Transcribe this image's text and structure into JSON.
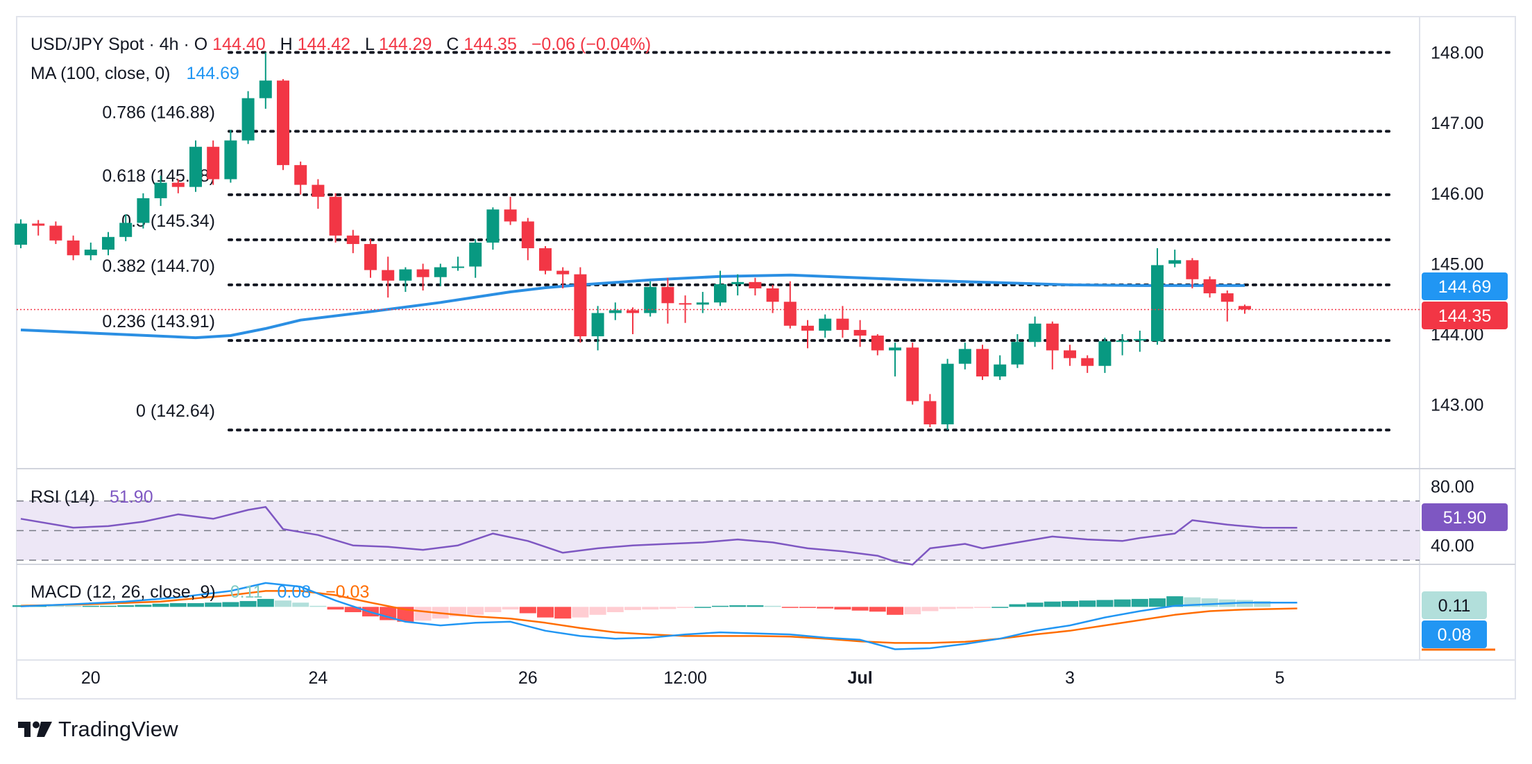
{
  "colors": {
    "up": "#089981",
    "down": "#f23645",
    "ma": "#2962ff",
    "ma_line": "#2b8fe3",
    "rsi": "#7e57c2",
    "rsi_band": "#ede7f6",
    "macd_line": "#2196f3",
    "signal_line": "#ff6d00",
    "hist_up_strong": "#26a69a",
    "hist_up_weak": "#b2dfdb",
    "hist_down_strong": "#ff5252",
    "hist_down_weak": "#ffcdd2",
    "grid_dots": "#131722",
    "text": "#131722"
  },
  "legend": {
    "symbol": "USD/JPY Spot · 4h · O",
    "open": "144.40",
    "high_label": "H",
    "high": "144.42",
    "low_label": "L",
    "low": "144.29",
    "close_label": "C",
    "close": "144.35",
    "change": "−0.06 (−0.04%)",
    "ma_label": "MA (100, close, 0)",
    "ma_value": "144.69",
    "rsi_label": "RSI (14)",
    "rsi_value": "51.90",
    "macd_label": "MACD (12, 26, close, 9)",
    "macd_hist": "0.11",
    "macd_value": "0.08",
    "macd_signal": "−0.03"
  },
  "badges": {
    "ma": "144.69",
    "price": "144.35",
    "rsi": "51.90",
    "macd_hist": "0.11",
    "macd": "0.08"
  },
  "brand": {
    "name": "TradingView"
  },
  "chart_data": {
    "type": "candlestick",
    "ylim": [
      142.15,
      148.35
    ],
    "y_ticks": [
      "148.00",
      "147.00",
      "146.00",
      "145.00",
      "144.00",
      "143.00"
    ],
    "x_ticks": [
      {
        "label": "20",
        "bar": 4
      },
      {
        "label": "24",
        "bar": 17
      },
      {
        "label": "26",
        "bar": 29
      },
      {
        "label": "12:00",
        "bar": 38
      },
      {
        "label": "Jul",
        "bar": 48
      },
      {
        "label": "3",
        "bar": 60
      },
      {
        "label": "5",
        "bar": 72
      }
    ],
    "fibonacci": [
      {
        "label": "0.786 (146.88)",
        "value": 146.88
      },
      {
        "label": "0.618 (145.98)",
        "value": 145.98
      },
      {
        "label": "0.5 (145.34)",
        "value": 145.34
      },
      {
        "label": "0.382 (144.70)",
        "value": 144.7
      },
      {
        "label": "0.236 (143.91)",
        "value": 143.91
      },
      {
        "label": "0 (142.64)",
        "value": 142.64
      }
    ],
    "fib_top": 148.0,
    "candles": [
      [
        145.27,
        145.57,
        145.63,
        145.22
      ],
      [
        145.57,
        145.54,
        145.62,
        145.4
      ],
      [
        145.54,
        145.33,
        145.6,
        145.28
      ],
      [
        145.33,
        145.12,
        145.4,
        145.05
      ],
      [
        145.12,
        145.2,
        145.3,
        145.05
      ],
      [
        145.2,
        145.38,
        145.45,
        145.12
      ],
      [
        145.38,
        145.58,
        145.7,
        145.32
      ],
      [
        145.58,
        145.93,
        146.0,
        145.5
      ],
      [
        145.93,
        146.15,
        146.25,
        145.82
      ],
      [
        146.15,
        146.09,
        146.2,
        146.0
      ],
      [
        146.09,
        146.66,
        146.75,
        146.02
      ],
      [
        146.66,
        146.2,
        146.75,
        146.12
      ],
      [
        146.2,
        146.75,
        146.9,
        146.15
      ],
      [
        146.75,
        147.35,
        147.45,
        146.7
      ],
      [
        147.35,
        147.6,
        148.0,
        147.2
      ],
      [
        147.6,
        146.4,
        147.62,
        146.33
      ],
      [
        146.4,
        146.12,
        146.45,
        145.98
      ],
      [
        146.12,
        145.95,
        146.2,
        145.78
      ],
      [
        145.95,
        145.4,
        146.0,
        145.3
      ],
      [
        145.4,
        145.28,
        145.48,
        145.15
      ],
      [
        145.28,
        144.91,
        145.35,
        144.8
      ],
      [
        144.91,
        144.76,
        145.1,
        144.52
      ],
      [
        144.76,
        144.92,
        144.95,
        144.6
      ],
      [
        144.92,
        144.81,
        145.0,
        144.62
      ],
      [
        144.81,
        144.95,
        145.0,
        144.68
      ],
      [
        144.95,
        144.96,
        145.1,
        144.9
      ],
      [
        144.96,
        145.3,
        145.35,
        144.8
      ],
      [
        145.3,
        145.77,
        145.8,
        145.2
      ],
      [
        145.77,
        145.6,
        145.95,
        145.55
      ],
      [
        145.6,
        145.22,
        145.65,
        145.05
      ],
      [
        145.22,
        144.9,
        145.25,
        144.85
      ],
      [
        144.9,
        144.85,
        144.95,
        144.65
      ],
      [
        144.85,
        143.97,
        144.95,
        143.88
      ],
      [
        143.97,
        144.3,
        144.4,
        143.77
      ],
      [
        144.3,
        144.34,
        144.45,
        144.2
      ],
      [
        144.34,
        144.3,
        144.38,
        144.0
      ],
      [
        144.3,
        144.67,
        144.75,
        144.25
      ],
      [
        144.67,
        144.44,
        144.8,
        144.15
      ],
      [
        144.44,
        144.42,
        144.55,
        144.16
      ],
      [
        144.42,
        144.45,
        144.6,
        144.3
      ],
      [
        144.45,
        144.71,
        144.9,
        144.4
      ],
      [
        144.71,
        144.74,
        144.85,
        144.55
      ],
      [
        144.74,
        144.65,
        144.8,
        144.55
      ],
      [
        144.65,
        144.46,
        144.7,
        144.3
      ],
      [
        144.46,
        144.12,
        144.75,
        144.08
      ],
      [
        144.12,
        144.05,
        144.2,
        143.8
      ],
      [
        144.05,
        144.22,
        144.28,
        143.95
      ],
      [
        144.22,
        144.06,
        144.4,
        143.95
      ],
      [
        144.06,
        143.98,
        144.2,
        143.82
      ],
      [
        143.98,
        143.77,
        144.0,
        143.7
      ],
      [
        143.77,
        143.81,
        143.88,
        143.4
      ],
      [
        143.81,
        143.05,
        143.88,
        143.0
      ],
      [
        143.05,
        142.72,
        143.15,
        142.68
      ],
      [
        142.72,
        143.58,
        143.65,
        142.64
      ],
      [
        143.58,
        143.79,
        143.88,
        143.5
      ],
      [
        143.79,
        143.4,
        143.85,
        143.35
      ],
      [
        143.4,
        143.57,
        143.7,
        143.35
      ],
      [
        143.57,
        143.89,
        144.0,
        143.52
      ],
      [
        143.89,
        144.15,
        144.25,
        143.82
      ],
      [
        144.15,
        143.77,
        144.18,
        143.5
      ],
      [
        143.77,
        143.66,
        143.85,
        143.55
      ],
      [
        143.66,
        143.55,
        143.7,
        143.45
      ],
      [
        143.55,
        143.9,
        143.95,
        143.45
      ],
      [
        143.9,
        143.91,
        144.0,
        143.7
      ],
      [
        143.91,
        143.93,
        144.05,
        143.75
      ],
      [
        143.9,
        144.98,
        145.22,
        143.85
      ],
      [
        145.0,
        145.05,
        145.2,
        144.95
      ],
      [
        145.05,
        144.78,
        145.08,
        144.65
      ],
      [
        144.78,
        144.58,
        144.82,
        144.52
      ],
      [
        144.58,
        144.46,
        144.62,
        144.18
      ],
      [
        144.4,
        144.35,
        144.42,
        144.29
      ]
    ],
    "ma": [
      [
        0,
        144.06
      ],
      [
        10,
        143.95
      ],
      [
        12,
        143.98
      ],
      [
        14,
        144.08
      ],
      [
        16,
        144.2
      ],
      [
        20,
        144.32
      ],
      [
        24,
        144.45
      ],
      [
        28,
        144.6
      ],
      [
        30,
        144.66
      ],
      [
        32,
        144.7
      ],
      [
        36,
        144.77
      ],
      [
        40,
        144.82
      ],
      [
        44,
        144.84
      ],
      [
        48,
        144.8
      ],
      [
        52,
        144.76
      ],
      [
        56,
        144.73
      ],
      [
        60,
        144.7
      ],
      [
        64,
        144.69
      ],
      [
        68,
        144.69
      ],
      [
        70,
        144.69
      ]
    ],
    "rsi": {
      "ylim": [
        30,
        90
      ],
      "ticks": [
        "80.00",
        "40.00"
      ],
      "levels": [
        70,
        50,
        30
      ],
      "values": [
        [
          0,
          58
        ],
        [
          3,
          52
        ],
        [
          5,
          53
        ],
        [
          7,
          56
        ],
        [
          9,
          61
        ],
        [
          11,
          58
        ],
        [
          13,
          64
        ],
        [
          14,
          66
        ],
        [
          15,
          51
        ],
        [
          17,
          47
        ],
        [
          19,
          40
        ],
        [
          21,
          39
        ],
        [
          23,
          37
        ],
        [
          25,
          40
        ],
        [
          27,
          48
        ],
        [
          29,
          43
        ],
        [
          31,
          35
        ],
        [
          33,
          38
        ],
        [
          35,
          40
        ],
        [
          37,
          41
        ],
        [
          39,
          42
        ],
        [
          41,
          44
        ],
        [
          43,
          42
        ],
        [
          45,
          38
        ],
        [
          47,
          36
        ],
        [
          49,
          33
        ],
        [
          50,
          29
        ],
        [
          51,
          27
        ],
        [
          52,
          38
        ],
        [
          54,
          41
        ],
        [
          55,
          38
        ],
        [
          57,
          42
        ],
        [
          59,
          46
        ],
        [
          61,
          44
        ],
        [
          63,
          43
        ],
        [
          64,
          45
        ],
        [
          66,
          48
        ],
        [
          67,
          57
        ],
        [
          69,
          54
        ],
        [
          71,
          52
        ],
        [
          73,
          51.9
        ]
      ]
    },
    "macd": {
      "ylim": [
        -0.95,
        0.75
      ],
      "macd": [
        [
          0,
          0.01
        ],
        [
          3,
          0.05
        ],
        [
          6,
          0.1
        ],
        [
          9,
          0.18
        ],
        [
          12,
          0.3
        ],
        [
          14,
          0.45
        ],
        [
          16,
          0.38
        ],
        [
          18,
          0.12
        ],
        [
          20,
          -0.1
        ],
        [
          22,
          -0.28
        ],
        [
          24,
          -0.35
        ],
        [
          26,
          -0.3
        ],
        [
          28,
          -0.28
        ],
        [
          30,
          -0.45
        ],
        [
          32,
          -0.55
        ],
        [
          34,
          -0.6
        ],
        [
          36,
          -0.58
        ],
        [
          38,
          -0.52
        ],
        [
          40,
          -0.48
        ],
        [
          42,
          -0.5
        ],
        [
          44,
          -0.52
        ],
        [
          46,
          -0.58
        ],
        [
          48,
          -0.62
        ],
        [
          50,
          -0.8
        ],
        [
          52,
          -0.78
        ],
        [
          54,
          -0.7
        ],
        [
          56,
          -0.6
        ],
        [
          58,
          -0.45
        ],
        [
          60,
          -0.35
        ],
        [
          62,
          -0.2
        ],
        [
          64,
          -0.08
        ],
        [
          66,
          0.02
        ],
        [
          68,
          0.05
        ],
        [
          70,
          0.08
        ],
        [
          73,
          0.08
        ]
      ],
      "signal": [
        [
          0,
          0.02
        ],
        [
          4,
          0.05
        ],
        [
          8,
          0.1
        ],
        [
          12,
          0.22
        ],
        [
          14,
          0.3
        ],
        [
          16,
          0.3
        ],
        [
          18,
          0.22
        ],
        [
          20,
          0.08
        ],
        [
          22,
          -0.05
        ],
        [
          24,
          -0.12
        ],
        [
          26,
          -0.18
        ],
        [
          28,
          -0.22
        ],
        [
          30,
          -0.3
        ],
        [
          32,
          -0.4
        ],
        [
          34,
          -0.48
        ],
        [
          36,
          -0.52
        ],
        [
          38,
          -0.55
        ],
        [
          40,
          -0.55
        ],
        [
          42,
          -0.55
        ],
        [
          44,
          -0.56
        ],
        [
          46,
          -0.6
        ],
        [
          48,
          -0.65
        ],
        [
          50,
          -0.68
        ],
        [
          52,
          -0.68
        ],
        [
          54,
          -0.66
        ],
        [
          56,
          -0.6
        ],
        [
          58,
          -0.52
        ],
        [
          60,
          -0.45
        ],
        [
          62,
          -0.35
        ],
        [
          64,
          -0.25
        ],
        [
          66,
          -0.15
        ],
        [
          68,
          -0.08
        ],
        [
          70,
          -0.05
        ],
        [
          73,
          -0.03
        ]
      ],
      "hist": [
        0.03,
        0.04,
        0.03,
        0.02,
        0.02,
        0.02,
        0.03,
        0.04,
        0.06,
        0.07,
        0.07,
        0.08,
        0.09,
        0.11,
        0.15,
        0.12,
        0.08,
        0.02,
        -0.05,
        -0.1,
        -0.18,
        -0.25,
        -0.28,
        -0.26,
        -0.22,
        -0.18,
        -0.15,
        -0.1,
        -0.05,
        -0.12,
        -0.2,
        -0.22,
        -0.2,
        -0.15,
        -0.1,
        -0.06,
        -0.05,
        -0.04,
        -0.02,
        0.0,
        0.02,
        0.03,
        0.03,
        0.02,
        -0.01,
        -0.02,
        -0.03,
        -0.05,
        -0.07,
        -0.09,
        -0.15,
        -0.14,
        -0.08,
        -0.04,
        -0.03,
        -0.02,
        0.0,
        0.05,
        0.08,
        0.1,
        0.11,
        0.12,
        0.13,
        0.14,
        0.15,
        0.16,
        0.2,
        0.18,
        0.16,
        0.14,
        0.13,
        0.11
      ]
    }
  }
}
